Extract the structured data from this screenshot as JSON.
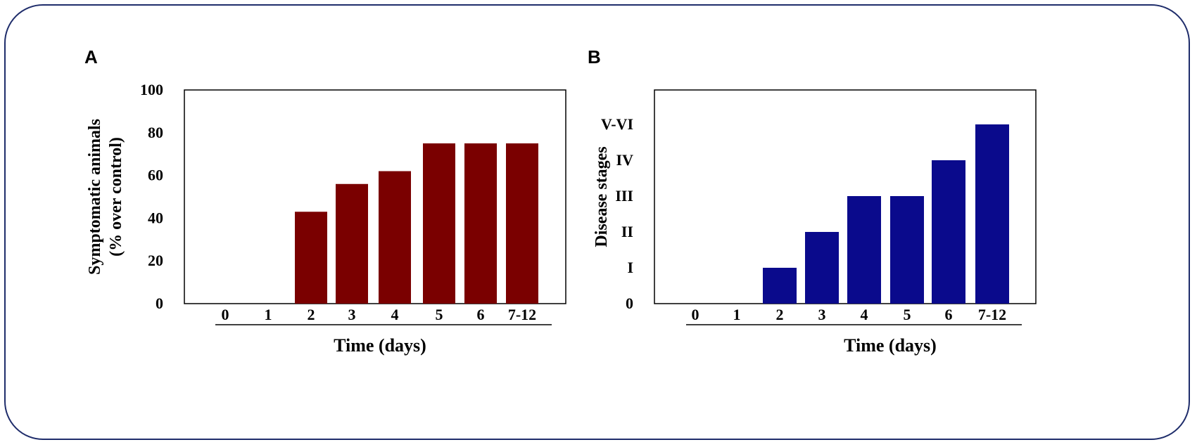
{
  "chart_data": [
    {
      "panel": "A",
      "type": "bar",
      "categories": [
        "0",
        "1",
        "2",
        "3",
        "4",
        "5",
        "6",
        "7-12"
      ],
      "values": [
        0,
        0,
        43,
        56,
        62,
        75,
        75,
        75
      ],
      "ylim": [
        0,
        100
      ],
      "yticks": [
        "0",
        "20",
        "40",
        "60",
        "80",
        "100"
      ],
      "xlabel": "Time (days)",
      "ylabel": [
        "Symptomatic animals",
        "(% over control)"
      ],
      "color": "#7a0000"
    },
    {
      "panel": "B",
      "type": "bar",
      "categories": [
        "0",
        "1",
        "2",
        "3",
        "4",
        "5",
        "6",
        "7-12"
      ],
      "values": [
        0,
        0,
        1,
        2,
        3,
        3,
        4,
        5
      ],
      "ylim": [
        0,
        6
      ],
      "yticks": [
        "0",
        "I",
        "II",
        "III",
        "IV",
        "V-VI"
      ],
      "xlabel": "Time (days)",
      "ylabel": [
        "Disease stages"
      ],
      "color": "#0a0a8c"
    }
  ]
}
